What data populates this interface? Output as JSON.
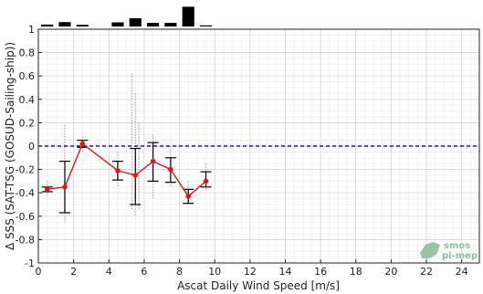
{
  "chart_data": {
    "type": "line",
    "title": "",
    "xlabel": "Ascat Daily Wind Speed [m/s]",
    "ylabel": "Δ SSS (SAT-TSG (GOSUD-Sailing-ship))",
    "xlim": [
      0,
      25
    ],
    "ylim": [
      -1,
      1
    ],
    "xticks": [
      0,
      2,
      4,
      6,
      8,
      10,
      12,
      14,
      16,
      18,
      20,
      22,
      24
    ],
    "yticks": [
      -1,
      -0.8,
      -0.6,
      -0.4,
      -0.2,
      0,
      0.2,
      0.4,
      0.6,
      0.8,
      1
    ],
    "ytick_labels": [
      "-1",
      "-0.8",
      "-0.6",
      "-0.4",
      "-0.2",
      "0",
      "0.2",
      "0.4",
      "0.6",
      "0.8",
      "1"
    ],
    "grid": true,
    "reference_line": {
      "y": 0,
      "color": "#1a1aa8",
      "style": "dashed"
    },
    "series": [
      {
        "type": "line",
        "color": "#e8141a",
        "x": [
          0.5,
          1.5,
          2.5,
          4.5,
          5.5,
          6.5,
          7.5,
          8.5,
          9.5
        ],
        "y": [
          -0.37,
          -0.35,
          0.02,
          -0.21,
          -0.25,
          -0.13,
          -0.2,
          -0.43,
          -0.3
        ],
        "err_low": [
          -0.39,
          -0.57,
          -0.01,
          -0.29,
          -0.5,
          -0.3,
          -0.31,
          -0.49,
          -0.35
        ],
        "err_high": [
          -0.35,
          -0.13,
          0.05,
          -0.13,
          -0.02,
          0.03,
          -0.1,
          -0.37,
          -0.22
        ]
      }
    ],
    "scatter_strips": [
      {
        "x": 0.5,
        "ymin": -0.42,
        "ymax": -0.3
      },
      {
        "x": 1.5,
        "ymin": -0.65,
        "ymax": 0.18
      },
      {
        "x": 2.5,
        "ymin": -0.05,
        "ymax": 0.08
      },
      {
        "x": 4.5,
        "ymin": -0.35,
        "ymax": -0.05
      },
      {
        "x": 5.3,
        "ymin": -0.55,
        "ymax": 0.62
      },
      {
        "x": 5.5,
        "ymin": -0.6,
        "ymax": 0.45
      },
      {
        "x": 5.7,
        "ymin": -0.55,
        "ymax": 0.2
      },
      {
        "x": 6.5,
        "ymin": -0.45,
        "ymax": 0.1
      },
      {
        "x": 7.5,
        "ymin": -0.35,
        "ymax": 0.0
      },
      {
        "x": 8.5,
        "ymin": -0.5,
        "ymax": -0.3
      },
      {
        "x": 9.5,
        "ymin": -0.38,
        "ymax": -0.15
      }
    ],
    "histogram": {
      "x": [
        0.5,
        1.5,
        2.5,
        3.5,
        4.5,
        5.5,
        6.5,
        7.5,
        8.5,
        9.5
      ],
      "counts": [
        0.07,
        0.16,
        0.06,
        0,
        0.15,
        0.3,
        0.13,
        0.13,
        0.72,
        0.04
      ]
    }
  },
  "logo": {
    "line1": "smos",
    "line2": "pi-mep"
  }
}
